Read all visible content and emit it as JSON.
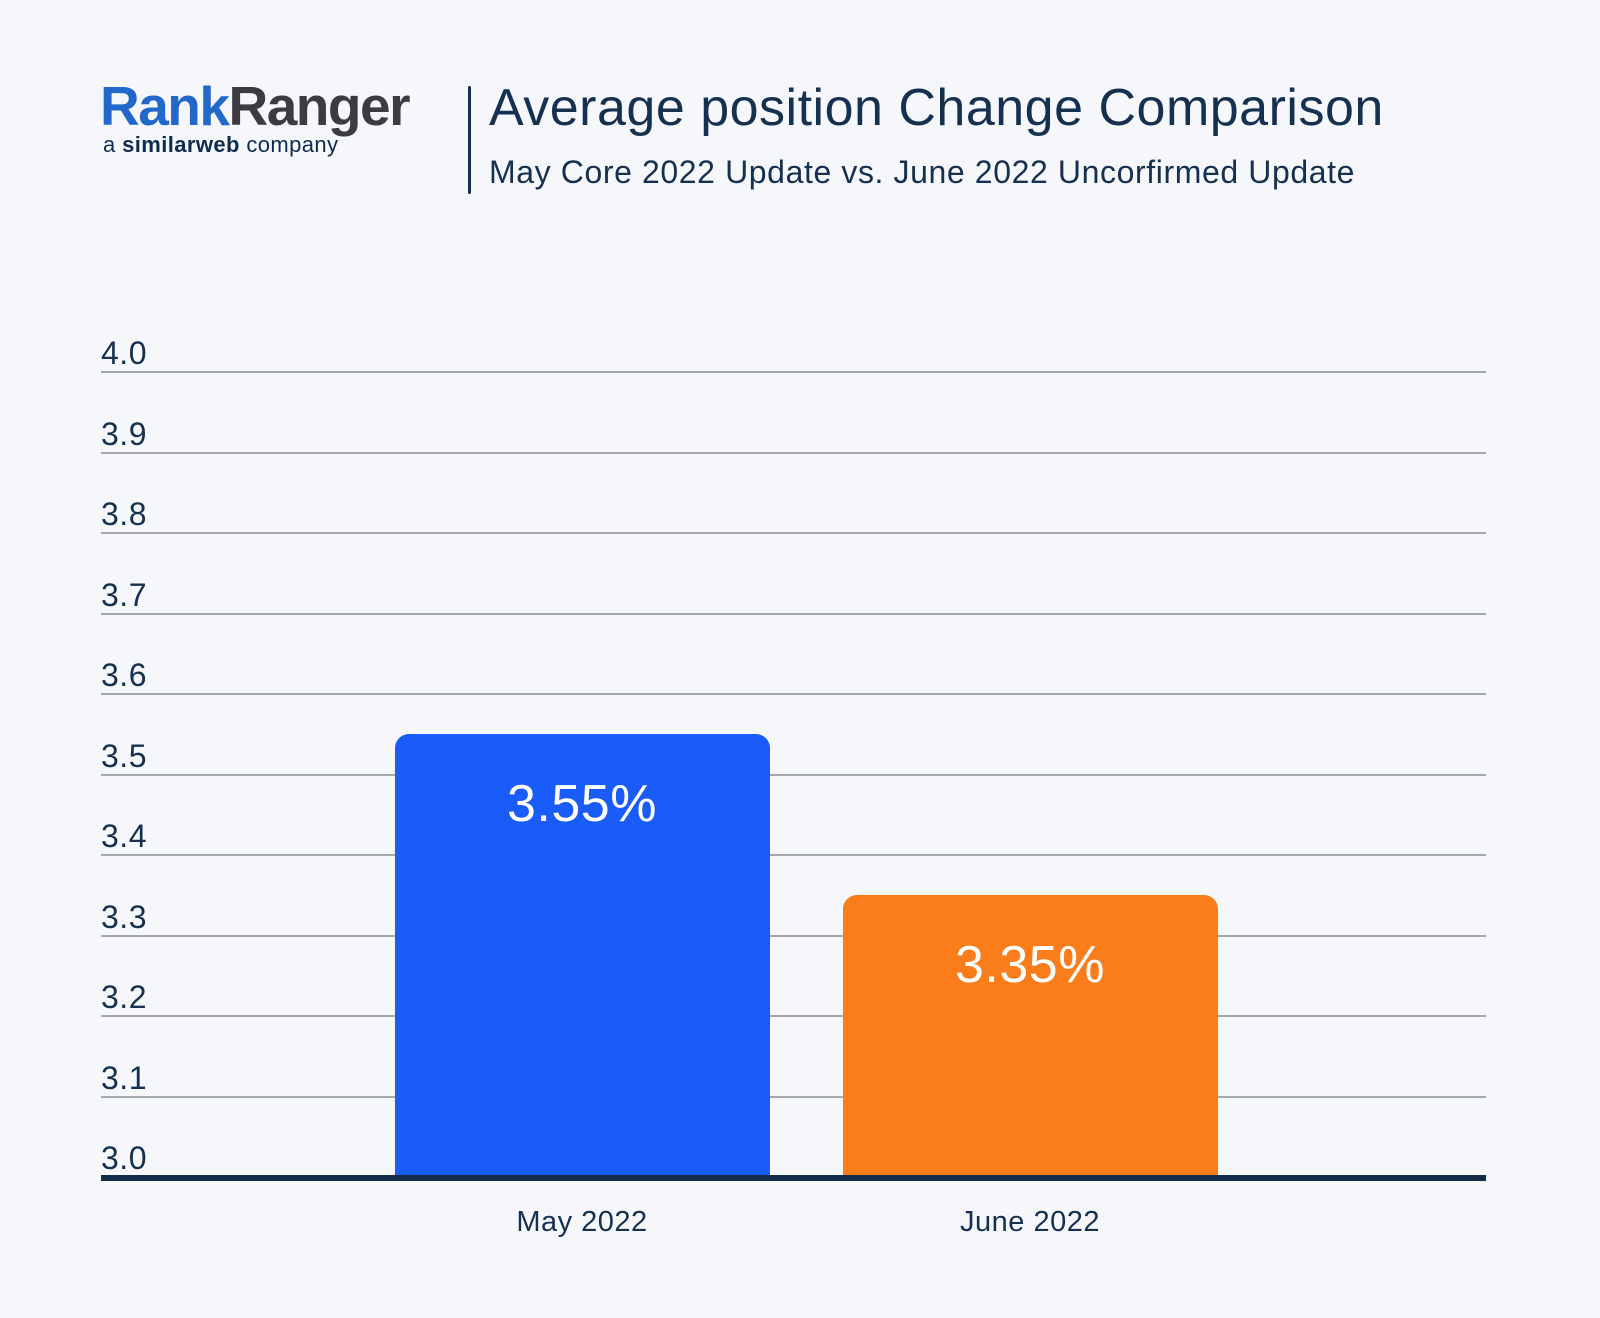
{
  "logo": {
    "brand_part1": "Rank",
    "brand_part2": "Ranger",
    "tagline_prefix": "a",
    "tagline_brand": "similarweb",
    "tagline_suffix": "company"
  },
  "header": {
    "title": "Average position Change Comparison",
    "subtitle": "May Core 2022 Update vs. June 2022 Uncorfirmed Update"
  },
  "chart_data": {
    "type": "bar",
    "title": "Average position Change Comparison",
    "subtitle": "May Core 2022 Update vs. June 2022 Uncorfirmed Update",
    "categories": [
      "May 2022",
      "June 2022"
    ],
    "values": [
      3.55,
      3.35
    ],
    "value_labels": [
      "3.55%",
      "3.35%"
    ],
    "bar_colors": [
      "#1a5cfa",
      "#fb7c1a"
    ],
    "ylim": [
      3.0,
      4.0
    ],
    "ytick_step": 0.1,
    "yticks": [
      "4.0",
      "3.9",
      "3.8",
      "3.7",
      "3.6",
      "3.5",
      "3.4",
      "3.3",
      "3.2",
      "3.1",
      "3.0"
    ],
    "xlabel": "",
    "ylabel": "",
    "grid": true,
    "legend": false
  },
  "colors": {
    "background": "#f5f7fb",
    "text_navy": "#16304f",
    "gridline": "#a3a7ae",
    "axis_line": "#132c47",
    "logo_blue": "#2268cb",
    "logo_dark": "#3c3c3e",
    "tagline_navy": "#0f2b4e",
    "bar_blue": "#1a5cfa",
    "bar_orange": "#fb7c1a",
    "bar_label": "#ffffff"
  }
}
